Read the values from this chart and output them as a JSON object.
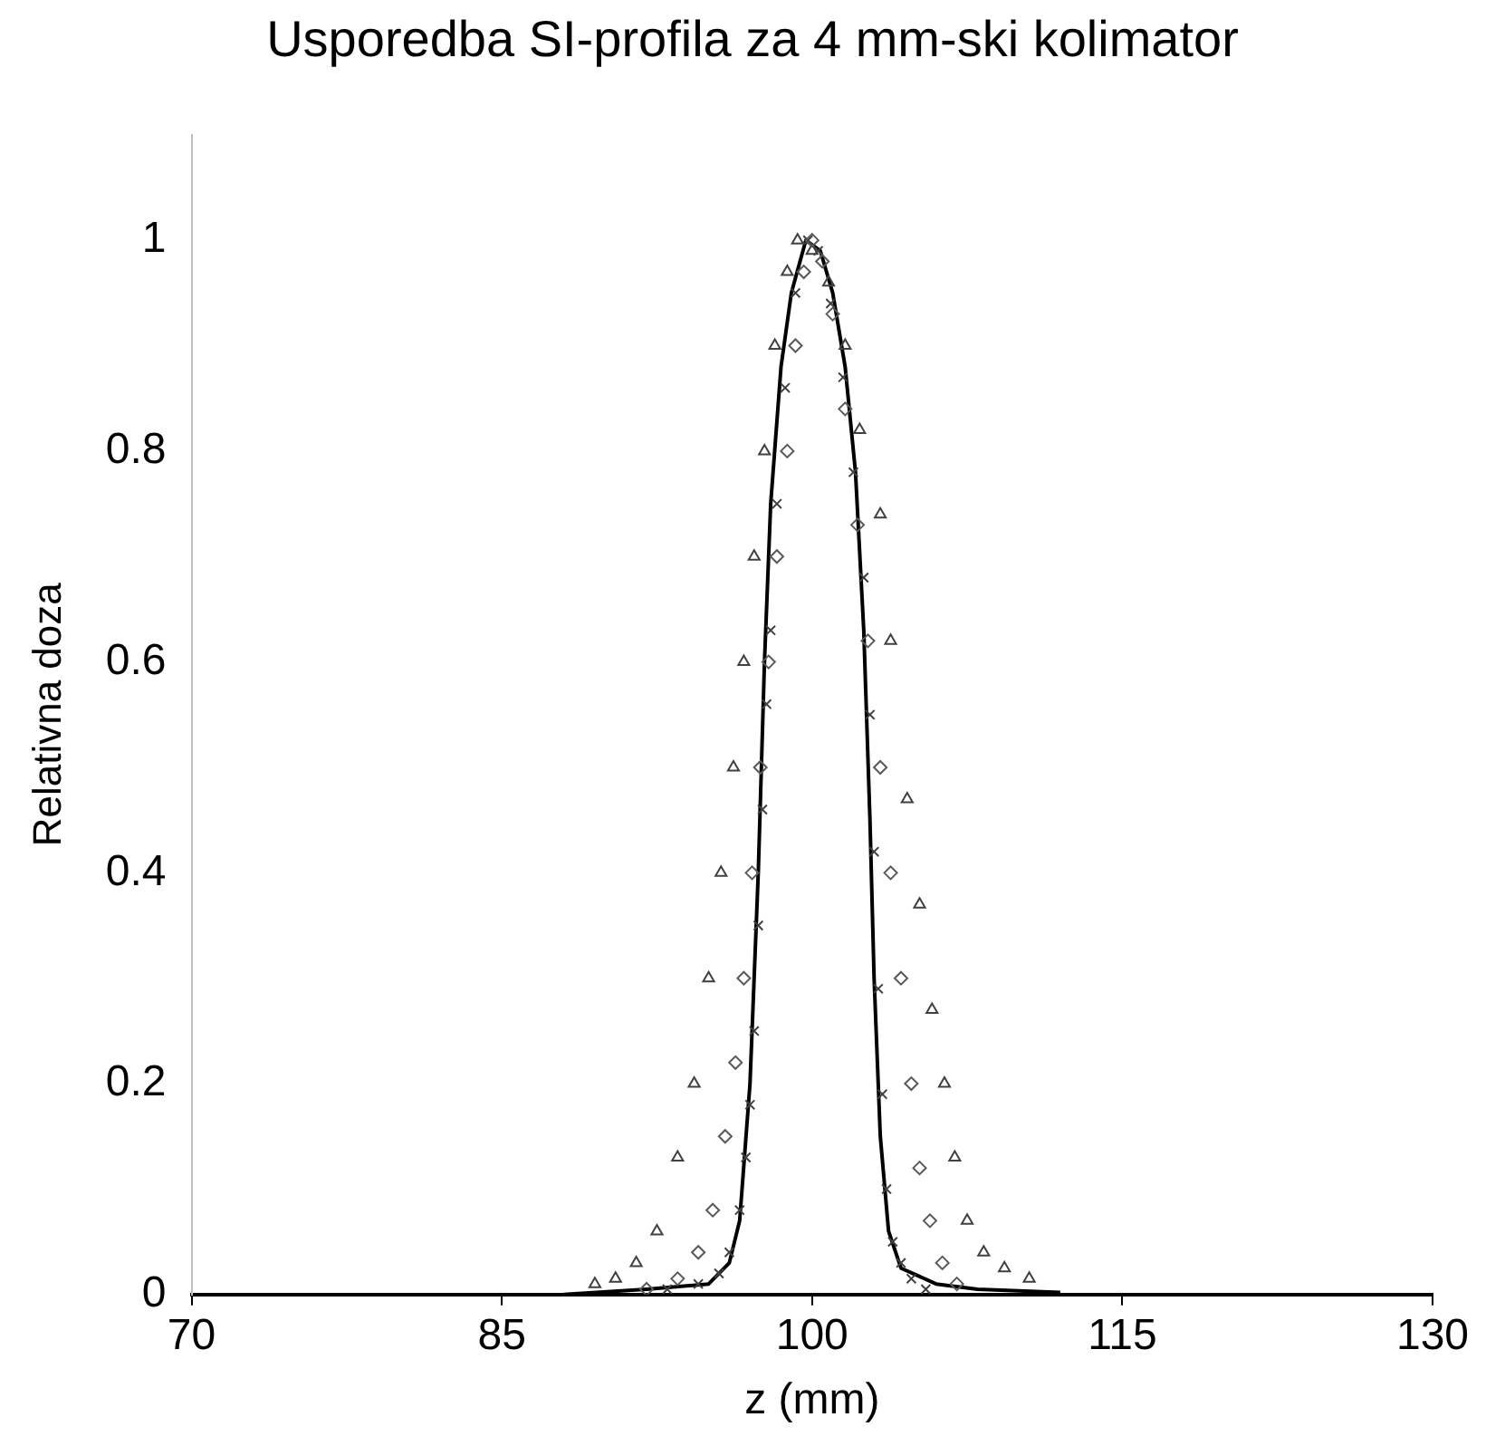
{
  "chart_data": {
    "type": "scatter",
    "title": "Usporedba SI-profila za 4 mm-ski kolimator",
    "xlabel": "z (mm)",
    "ylabel": "Relativna doza",
    "xlim": [
      70,
      130
    ],
    "xticks": [
      70,
      85,
      100,
      115,
      130
    ],
    "ylim": [
      0,
      1.1
    ],
    "yticks": [
      0,
      0.2,
      0.4,
      0.6,
      0.8,
      1
    ],
    "grid": false,
    "legend": false,
    "series": [
      {
        "marker": "diamond",
        "color": "#595959",
        "x": [
          92,
          93.5,
          94.5,
          95.2,
          95.8,
          96.3,
          96.7,
          97.1,
          97.5,
          97.9,
          98.3,
          98.8,
          99.2,
          99.6,
          100,
          100.5,
          101,
          101.6,
          102.2,
          102.7,
          103.3,
          103.8,
          104.3,
          104.8,
          105.2,
          105.7,
          106.3,
          107
        ],
        "values": [
          0.005,
          0.015,
          0.04,
          0.08,
          0.15,
          0.22,
          0.3,
          0.4,
          0.5,
          0.6,
          0.7,
          0.8,
          0.9,
          0.97,
          1.0,
          0.98,
          0.93,
          0.84,
          0.73,
          0.62,
          0.5,
          0.4,
          0.3,
          0.2,
          0.12,
          0.07,
          0.03,
          0.01
        ]
      },
      {
        "marker": "cross",
        "color": "#404040",
        "x": [
          93,
          94.5,
          95.5,
          96,
          96.5,
          96.8,
          97,
          97.2,
          97.4,
          97.6,
          97.8,
          98,
          98.3,
          98.7,
          99.2,
          99.8,
          100.3,
          100.9,
          101.5,
          102,
          102.5,
          102.8,
          103,
          103.2,
          103.4,
          103.6,
          103.9,
          104.3,
          104.8,
          105.5
        ],
        "values": [
          0.005,
          0.01,
          0.02,
          0.04,
          0.08,
          0.13,
          0.18,
          0.25,
          0.35,
          0.46,
          0.56,
          0.63,
          0.75,
          0.86,
          0.95,
          1.0,
          0.99,
          0.94,
          0.87,
          0.78,
          0.68,
          0.55,
          0.42,
          0.29,
          0.19,
          0.1,
          0.05,
          0.03,
          0.015,
          0.005
        ]
      },
      {
        "marker": "triangle",
        "color": "#404040",
        "x": [
          89.5,
          90.5,
          91.5,
          92.5,
          93.5,
          94.3,
          95,
          95.6,
          96.2,
          96.7,
          97.2,
          97.7,
          98.2,
          98.8,
          99.3,
          100,
          100.8,
          101.6,
          102.3,
          103.3,
          103.8,
          104.6,
          105.2,
          105.8,
          106.4,
          106.9,
          107.5,
          108.3,
          109.3,
          110.5
        ],
        "values": [
          0.01,
          0.015,
          0.03,
          0.06,
          0.13,
          0.2,
          0.3,
          0.4,
          0.5,
          0.6,
          0.7,
          0.8,
          0.9,
          0.97,
          1.0,
          0.99,
          0.96,
          0.9,
          0.82,
          0.74,
          0.62,
          0.47,
          0.37,
          0.27,
          0.2,
          0.13,
          0.07,
          0.04,
          0.025,
          0.015
        ]
      },
      {
        "type": "line",
        "marker": "none",
        "line_style": "solid",
        "color": "#000000",
        "x": [
          88,
          92,
          95,
          96,
          96.5,
          97,
          97.4,
          97.7,
          98,
          98.5,
          99,
          99.7,
          100.4,
          101,
          101.6,
          102.1,
          102.5,
          102.8,
          103,
          103.3,
          103.7,
          104.3,
          106,
          108,
          112
        ],
        "values": [
          0,
          0.005,
          0.01,
          0.03,
          0.07,
          0.2,
          0.4,
          0.6,
          0.75,
          0.88,
          0.95,
          1.0,
          0.99,
          0.95,
          0.88,
          0.78,
          0.63,
          0.45,
          0.3,
          0.15,
          0.06,
          0.025,
          0.01,
          0.005,
          0.002
        ]
      }
    ]
  }
}
